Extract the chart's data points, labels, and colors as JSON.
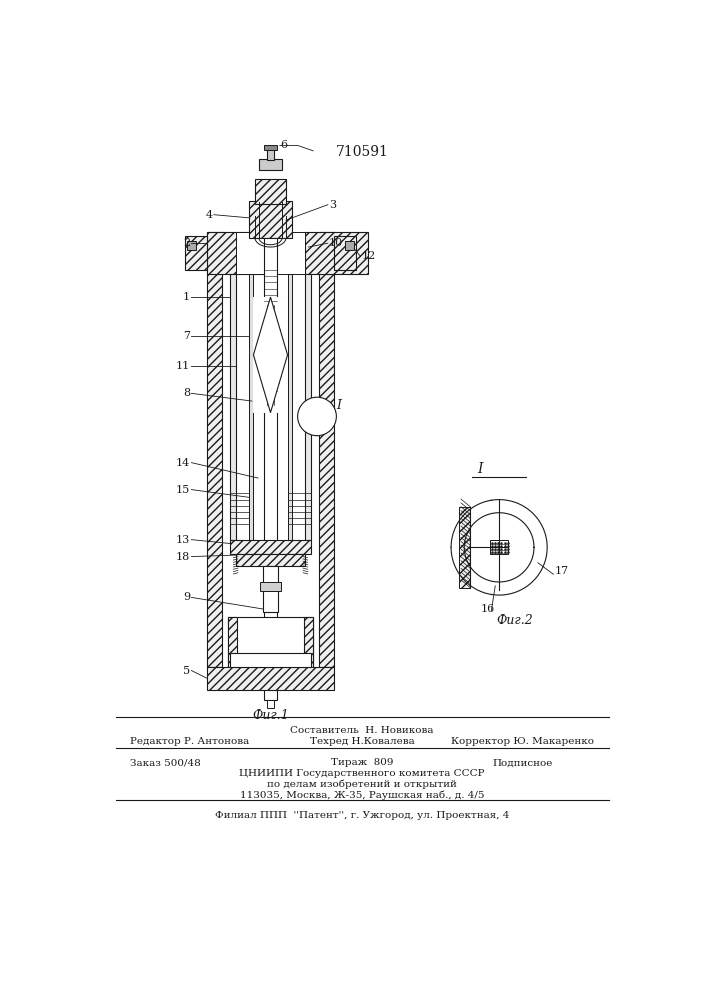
{
  "patent_number": "710591",
  "fig1_caption": "Фиг.1",
  "fig2_caption": "Фиг.2",
  "footer_line1": "Составитель  Н. Новикова",
  "footer_line2_left": "Редактор Р. Антонова",
  "footer_line2_mid": "Техред Н.Ковалева",
  "footer_line2_right": "Корректор Ю. Макаренко",
  "footer_line3_left": "Заказ 500/48",
  "footer_line3_mid": "Тираж  809",
  "footer_line3_right": "Подписное",
  "footer_line4": "ЦНИИПИ Государственного комитета СССР",
  "footer_line5": "по делам изобретений и открытий",
  "footer_line6": "113035, Москва, Ж-35, Раушская наб., д. 4/5",
  "footer_line7": "Филиал ППП  ''Патент'', г. Ужгород, ул. Проектная, 4",
  "bg_color": "#ffffff",
  "line_color": "#1a1a1a"
}
